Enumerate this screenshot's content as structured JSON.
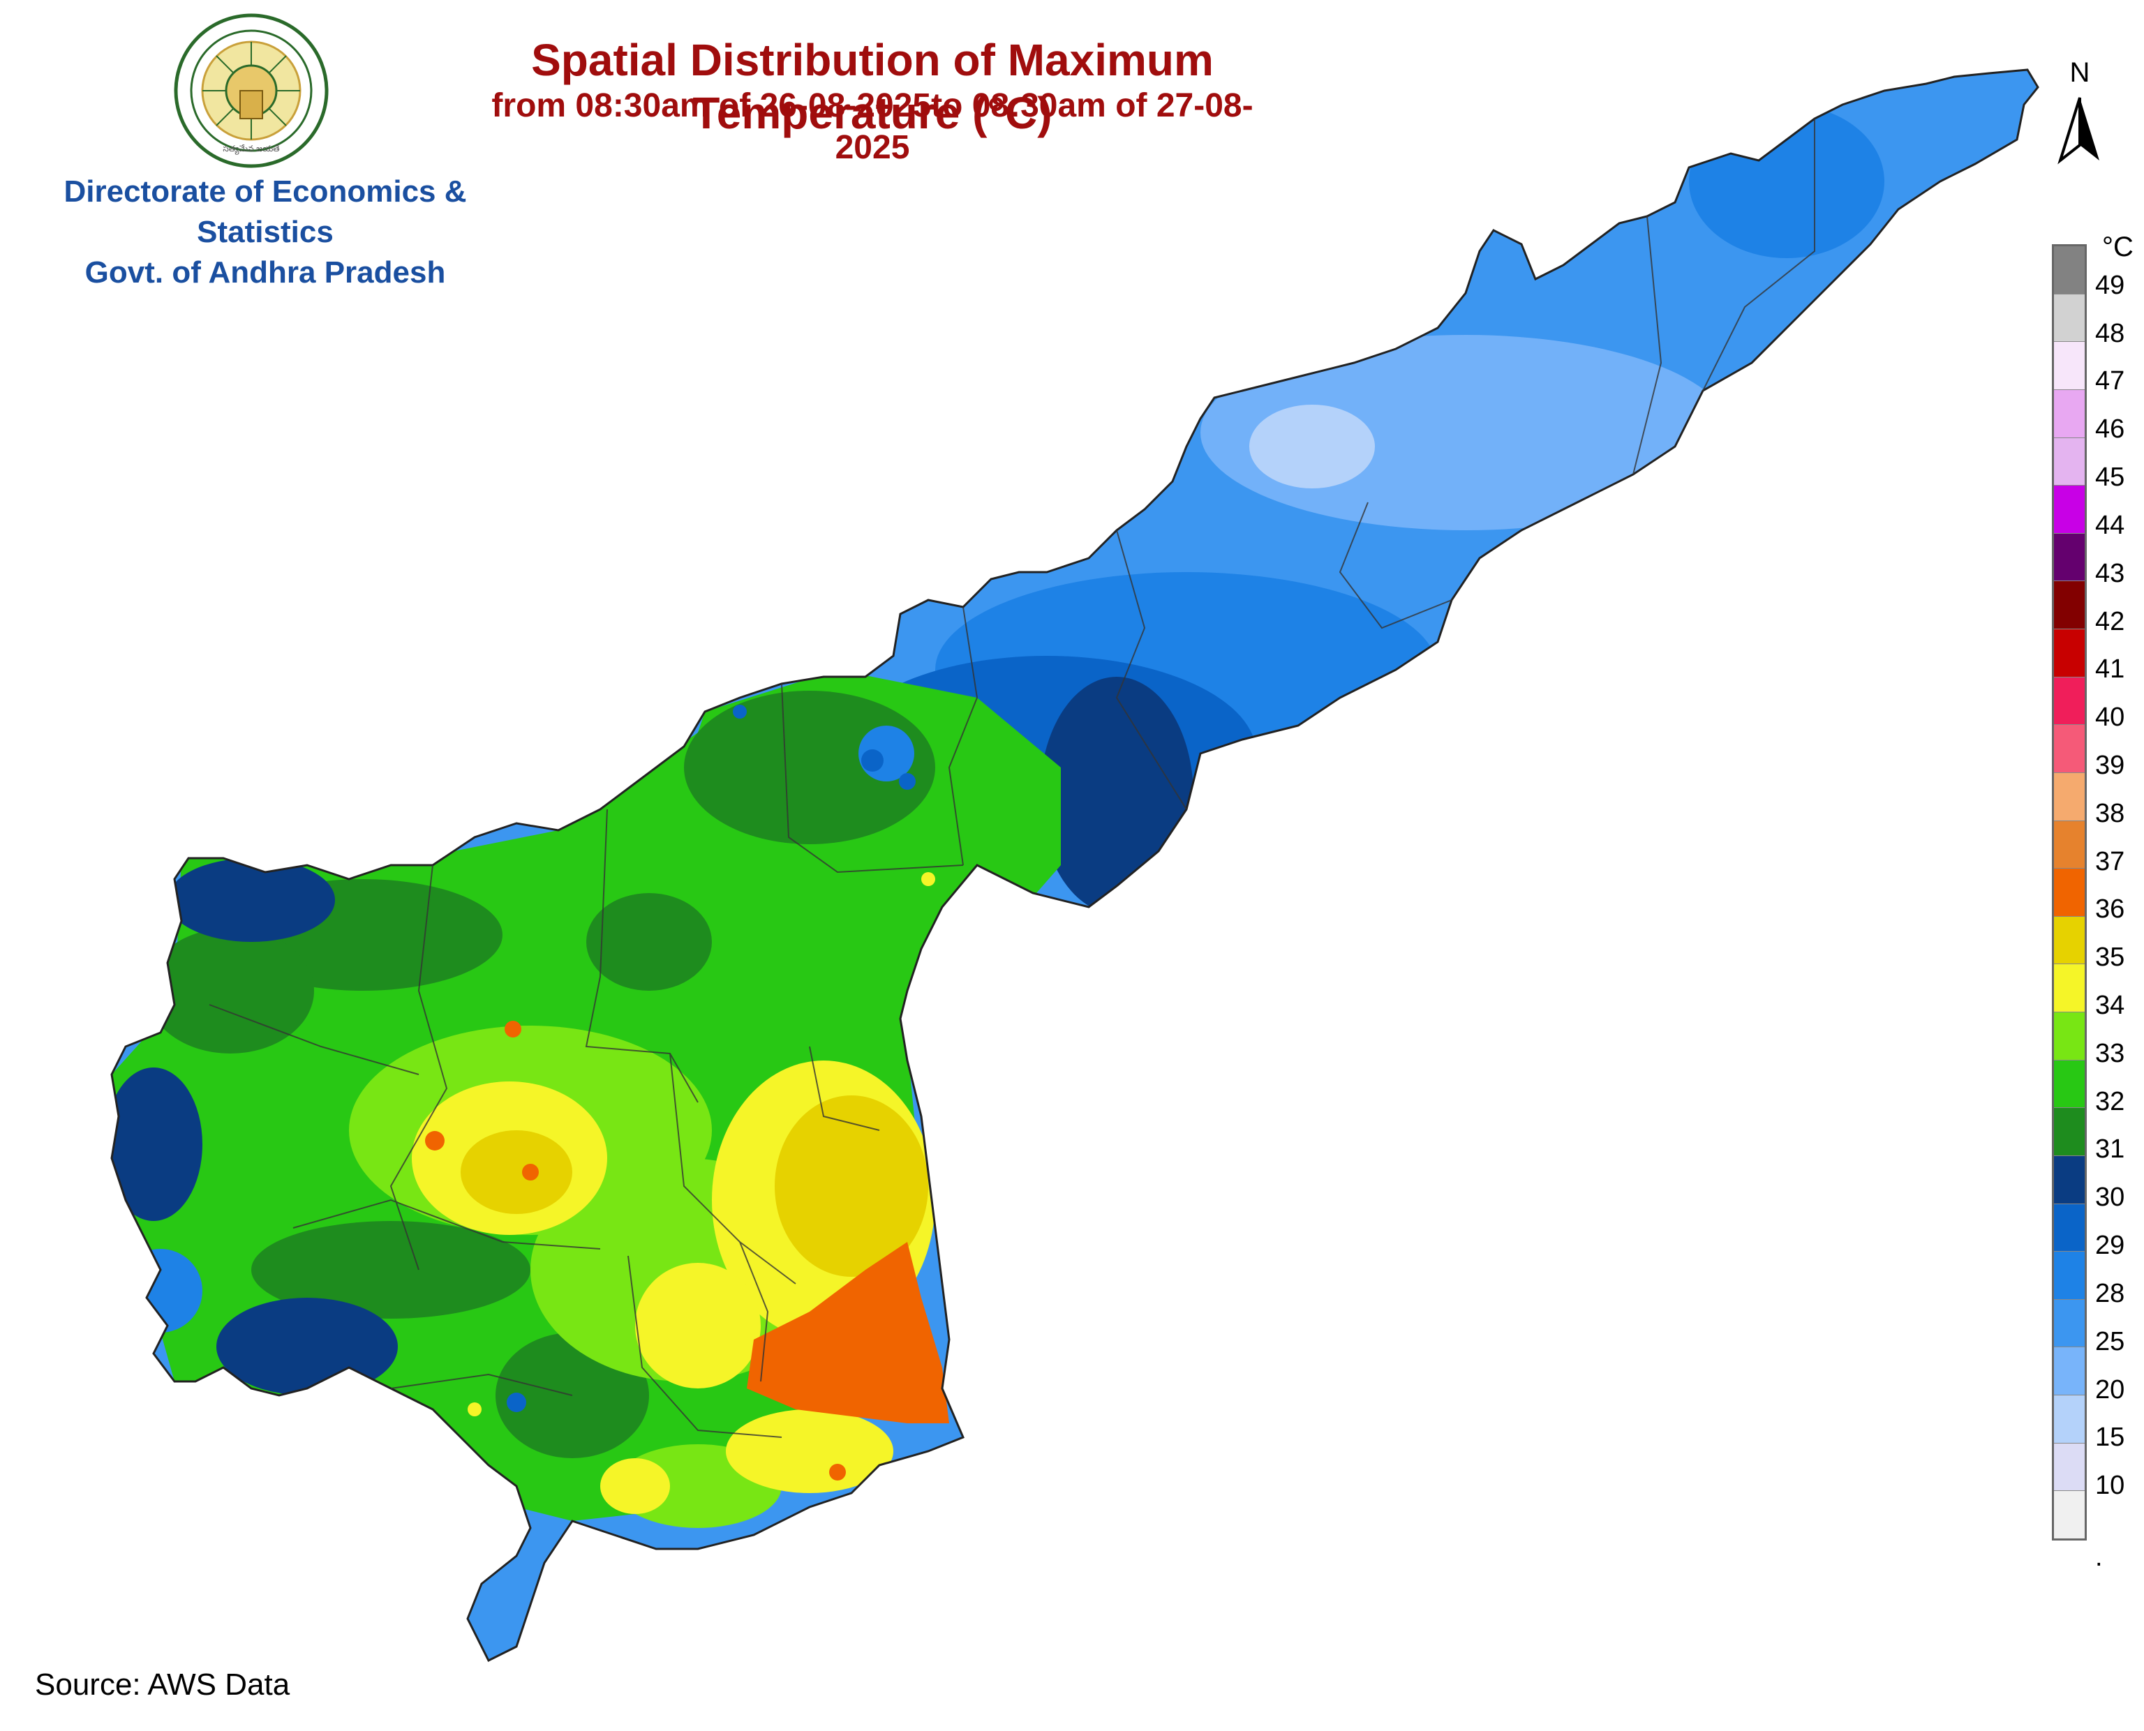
{
  "header": {
    "title": "Spatial Distribution of Maximum Temperature (°C)",
    "subtitle": "from 08:30am of 26-08-2025to 08:30am of 27-08-2025"
  },
  "organization": {
    "line1": "Directorate of Economics & Statistics",
    "line2": "Govt. of Andhra Pradesh",
    "seal_caption": "సత్యమేవ జయతే"
  },
  "north_arrow": {
    "label": "N"
  },
  "legend": {
    "unit": "°C",
    "bottom_marker": ".",
    "classes": [
      {
        "label": "49",
        "color": "#828282"
      },
      {
        "label": "48",
        "color": "#d2d2d2"
      },
      {
        "label": "47",
        "color": "#f7e6fa"
      },
      {
        "label": "46",
        "color": "#e8a8f2"
      },
      {
        "label": "45",
        "color": "#e4b4f0"
      },
      {
        "label": "44",
        "color": "#c800e6"
      },
      {
        "label": "43",
        "color": "#64006e"
      },
      {
        "label": "42",
        "color": "#820000"
      },
      {
        "label": "41",
        "color": "#c80000"
      },
      {
        "label": "40",
        "color": "#f01e5a"
      },
      {
        "label": "39",
        "color": "#f55a78"
      },
      {
        "label": "38",
        "color": "#f5aa6e"
      },
      {
        "label": "37",
        "color": "#e6822d"
      },
      {
        "label": "36",
        "color": "#f06400"
      },
      {
        "label": "35",
        "color": "#e6d200"
      },
      {
        "label": "34",
        "color": "#f5f528"
      },
      {
        "label": "33",
        "color": "#78e614"
      },
      {
        "label": "32",
        "color": "#28c814"
      },
      {
        "label": "31",
        "color": "#1e8c1e"
      },
      {
        "label": "30",
        "color": "#0a3c82"
      },
      {
        "label": "29",
        "color": "#0a64c8"
      },
      {
        "label": "28",
        "color": "#1e82e6"
      },
      {
        "label": "25",
        "color": "#3c96f0"
      },
      {
        "label": "20",
        "color": "#78b4fa"
      },
      {
        "label": "15",
        "color": "#b4d2fa"
      },
      {
        "label": "10",
        "color": "#dcdcf5"
      },
      {
        "label": "",
        "color": "#f0f0f0"
      }
    ]
  },
  "colors": {
    "title": "#a00d0d",
    "organization": "#1a4fa0"
  },
  "footer": {
    "source": "Source: AWS Data"
  }
}
